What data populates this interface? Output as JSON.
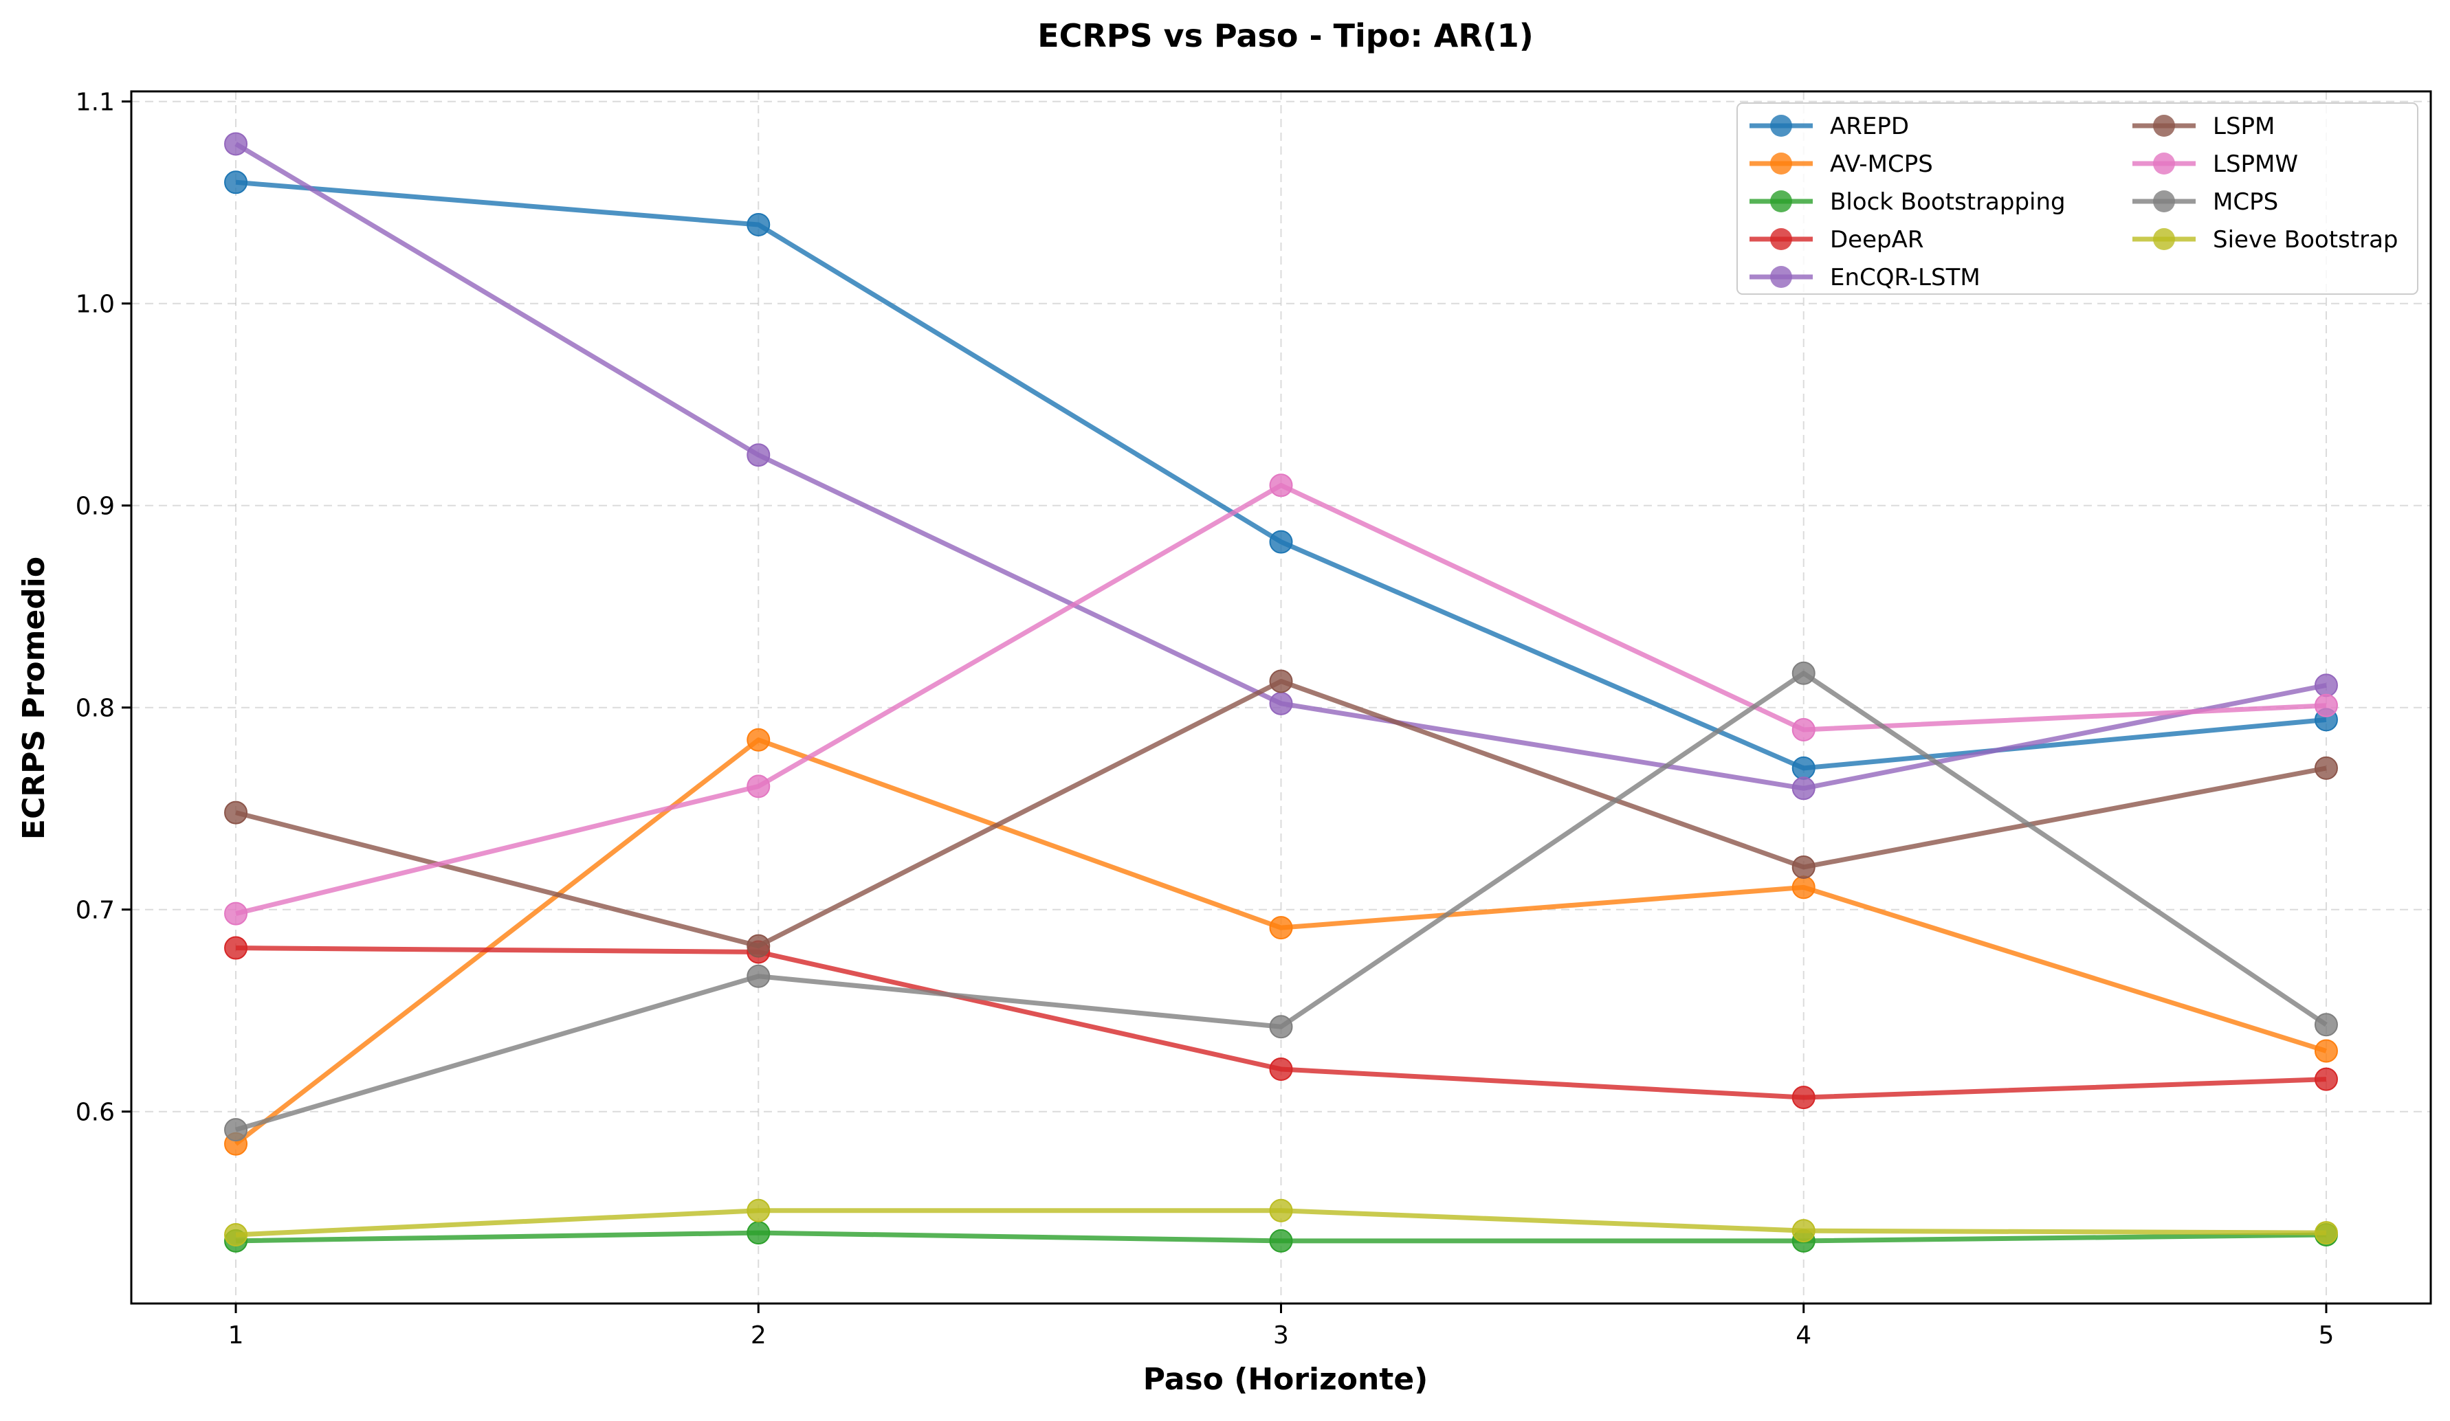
{
  "chart_data": {
    "type": "line",
    "title": "ECRPS vs Paso - Tipo: AR(1)",
    "xlabel": "Paso (Horizonte)",
    "ylabel": "ECRPS Promedio",
    "x": [
      1,
      2,
      3,
      4,
      5
    ],
    "xlim": [
      0.8,
      5.2
    ],
    "ylim": [
      0.505,
      1.105
    ],
    "yticks": [
      0.6,
      0.7,
      0.8,
      0.9,
      1.0,
      1.1
    ],
    "ytick_labels": [
      "0.6",
      "0.7",
      "0.8",
      "0.9",
      "1.0",
      "1.1"
    ],
    "xtick_labels": [
      "1",
      "2",
      "3",
      "4",
      "5"
    ],
    "grid": true,
    "legend_position": "top-right",
    "legend_columns": 2,
    "series": [
      {
        "name": "AREPD",
        "color": "#1f77b4",
        "values": [
          1.06,
          1.039,
          0.882,
          0.77,
          0.794
        ]
      },
      {
        "name": "AV-MCPS",
        "color": "#ff7f0e",
        "values": [
          0.584,
          0.784,
          0.691,
          0.711,
          0.63
        ]
      },
      {
        "name": "Block Bootstrapping",
        "color": "#2ca02c",
        "values": [
          0.536,
          0.54,
          0.536,
          0.536,
          0.539
        ]
      },
      {
        "name": "DeepAR",
        "color": "#d62728",
        "values": [
          0.681,
          0.679,
          0.621,
          0.607,
          0.616
        ]
      },
      {
        "name": "EnCQR-LSTM",
        "color": "#9467bd",
        "values": [
          1.079,
          0.925,
          0.802,
          0.76,
          0.811
        ]
      },
      {
        "name": "LSPM",
        "color": "#8c564b",
        "values": [
          0.748,
          0.682,
          0.813,
          0.721,
          0.77
        ]
      },
      {
        "name": "LSPMW",
        "color": "#e377c2",
        "values": [
          0.698,
          0.761,
          0.91,
          0.789,
          0.801
        ]
      },
      {
        "name": "MCPS",
        "color": "#7f7f7f",
        "values": [
          0.591,
          0.667,
          0.642,
          0.817,
          0.643
        ]
      },
      {
        "name": "Sieve Bootstrap",
        "color": "#bcbd22",
        "values": [
          0.539,
          0.551,
          0.551,
          0.541,
          0.54
        ]
      }
    ]
  }
}
